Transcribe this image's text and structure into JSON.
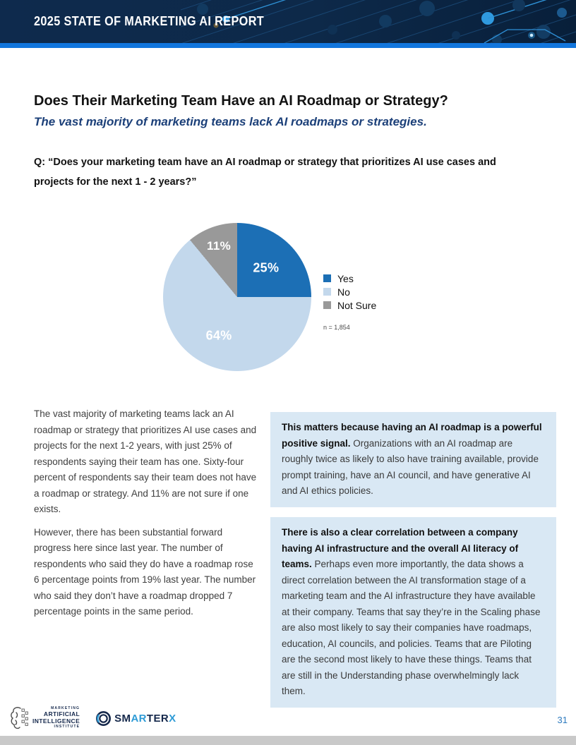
{
  "header": {
    "title": "2025 STATE OF MARKETING AI REPORT"
  },
  "page": {
    "title": "Does Their Marketing Team Have an AI Roadmap or Strategy?",
    "subtitle": "The vast majority of marketing teams lack AI roadmaps or strategies.",
    "question": "Q: “Does your marketing team have an AI roadmap or strategy that prioritizes AI use cases and projects for the next 1 - 2 years?”"
  },
  "chart_data": {
    "type": "pie",
    "categories": [
      "Yes",
      "No",
      "Not Sure"
    ],
    "values": [
      25,
      64,
      11
    ],
    "labels": [
      "25%",
      "64%",
      "11%"
    ],
    "colors": [
      "#1c6fb5",
      "#c3d8ec",
      "#999999"
    ],
    "legend_position": "right",
    "note": "n = 1,854"
  },
  "body": {
    "left_paragraphs": [
      "The vast majority of marketing teams lack an AI roadmap or strategy that prioritizes AI use cases and projects for the next 1-2 years, with just 25% of respondents saying their team has one. Sixty-four percent of respondents say their team does not have a roadmap or strategy. And 11% are not sure if one exists.",
      "However, there has been substantial forward progress here since last year. The number of respondents who said they do have a roadmap rose 6 percentage points from 19% last year. The number who said they don’t have a roadmap dropped 7 percentage points in the same period."
    ],
    "callouts": [
      {
        "lead": "This matters because having an AI roadmap is a powerful positive signal.",
        "text": "Organizations with an AI roadmap are roughly twice as likely to also have training available, provide prompt training, have an AI council, and have generative AI and AI ethics policies."
      },
      {
        "lead": "There is also a clear correlation between a company having AI infrastructure and the overall AI literacy of teams.",
        "text": "Perhaps even more importantly, the data shows a direct correlation between the AI transformation stage of a marketing team and the AI infrastructure they have available at their company. Teams that say they’re in the Scaling phase are also most likely to say their companies have roadmaps, education, AI councils, and policies. Teams that are Piloting are the second most likely to have these things. Teams that are still in the Understanding phase overwhelmingly lack them."
      }
    ]
  },
  "footer": {
    "logo_maii": {
      "lines": [
        "MARKETING",
        "ARTIFICIAL",
        "INTELLIGENCE",
        "INSTITUTE"
      ]
    },
    "logo_smarterx": {
      "parts": [
        {
          "t": "SM",
          "c": "#15284b"
        },
        {
          "t": "AR",
          "c": "#2e9bd6"
        },
        {
          "t": "TER",
          "c": "#15284b"
        },
        {
          "t": "X",
          "c": "#2e9bd6"
        }
      ]
    },
    "page_number": "31"
  },
  "colors": {
    "accent_stripe": "#1276dd",
    "callout_bg": "#d9e8f4",
    "page_number": "#2e7bbf"
  }
}
